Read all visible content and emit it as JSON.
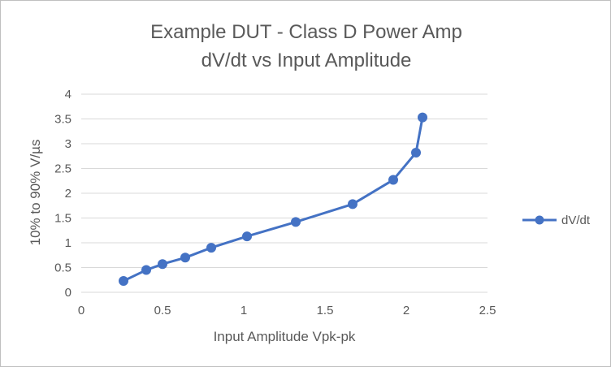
{
  "chart_data": {
    "type": "line",
    "title": [
      "Example DUT - Class D Power Amp",
      "dV/dt vs Input Amplitude"
    ],
    "xlabel": "Input Amplitude Vpk-pk",
    "ylabel": "10% to 90% V/µs",
    "xlim": [
      0,
      2.5
    ],
    "ylim": [
      0,
      4
    ],
    "x_ticks": [
      "0",
      "0.5",
      "1",
      "1.5",
      "2",
      "2.5"
    ],
    "y_ticks": [
      "0",
      "0.5",
      "1",
      "1.5",
      "2",
      "2.5",
      "3",
      "3.5",
      "4"
    ],
    "grid": "horizontal",
    "legend_position": "right",
    "series": [
      {
        "name": "dV/dt",
        "color": "#4472c4",
        "marker": "circle",
        "x": [
          0.26,
          0.4,
          0.5,
          0.64,
          0.8,
          1.02,
          1.32,
          1.67,
          1.92,
          2.06,
          2.1
        ],
        "y": [
          0.23,
          0.45,
          0.57,
          0.7,
          0.9,
          1.13,
          1.42,
          1.78,
          2.27,
          2.82,
          3.53
        ]
      }
    ]
  }
}
